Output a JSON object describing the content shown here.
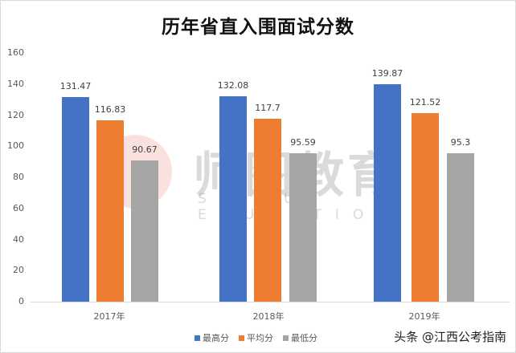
{
  "chart_data": {
    "type": "bar",
    "title": "历年省直入围面试分数",
    "categories": [
      "2017年",
      "2018年",
      "2019年"
    ],
    "series": [
      {
        "name": "最高分",
        "color": "#4472c4",
        "values": [
          131.47,
          132.08,
          139.87
        ]
      },
      {
        "name": "平均分",
        "color": "#ed7d31",
        "values": [
          116.83,
          117.7,
          121.52
        ]
      },
      {
        "name": "最低分",
        "color": "#a5a5a5",
        "values": [
          90.67,
          95.59,
          95.3
        ]
      }
    ],
    "xlabel": "",
    "ylabel": "",
    "ylim": [
      0,
      160
    ],
    "yticks": [
      "0",
      "20",
      "40",
      "60",
      "80",
      "100",
      "120",
      "140",
      "160"
    ],
    "grid": false,
    "legend_position": "bottom",
    "data_labels": [
      [
        "131.47",
        "116.83",
        "90.67"
      ],
      [
        "132.08",
        "117.7",
        "95.59"
      ],
      [
        "139.87",
        "121.52",
        "95.3"
      ]
    ]
  },
  "watermark": {
    "text": "师图教育",
    "subtext": "SHITU EDUCATION"
  },
  "credit": "头条 @江西公考指南"
}
